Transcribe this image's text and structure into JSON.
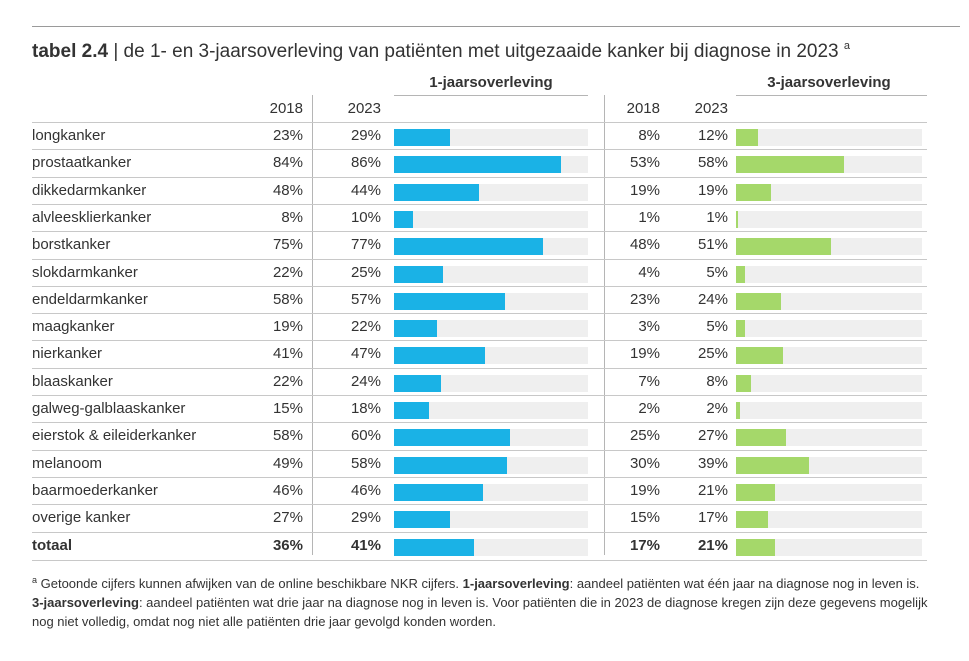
{
  "title": {
    "prefix": "tabel 2.4",
    "text": " | de 1- en 3-jaarsoverleving van patiënten met uitgezaaide kanker bij diagnose in 2023 ",
    "marker": "a"
  },
  "groups": {
    "one_year": "1-jaarsoverleving",
    "three_year": "3-jaarsoverleving"
  },
  "years": [
    "2018",
    "2023",
    "2018",
    "2023"
  ],
  "colors": {
    "one_year_bar": "#1ab2e6",
    "three_year_bar": "#a5d86a",
    "track": "#efefef"
  },
  "chart_data": {
    "type": "table",
    "columns": [
      "",
      "2018",
      "2023",
      "2018",
      "2023"
    ],
    "rows": [
      {
        "label": "longkanker",
        "y1_2018": "23%",
        "y1_2023": "29%",
        "y3_2018": "8%",
        "y3_2023": "12%",
        "bar1": 29,
        "bar3": 12
      },
      {
        "label": "prostaatkanker",
        "y1_2018": "84%",
        "y1_2023": "86%",
        "y3_2018": "53%",
        "y3_2023": "58%",
        "bar1": 86,
        "bar3": 58
      },
      {
        "label": "dikkedarmkanker",
        "y1_2018": "48%",
        "y1_2023": "44%",
        "y3_2018": "19%",
        "y3_2023": "19%",
        "bar1": 44,
        "bar3": 19
      },
      {
        "label": "alvleesklierkanker",
        "y1_2018": "8%",
        "y1_2023": "10%",
        "y3_2018": "1%",
        "y3_2023": "1%",
        "bar1": 10,
        "bar3": 1
      },
      {
        "label": "borstkanker",
        "y1_2018": "75%",
        "y1_2023": "77%",
        "y3_2018": "48%",
        "y3_2023": "51%",
        "bar1": 77,
        "bar3": 51
      },
      {
        "label": "slokdarmkanker",
        "y1_2018": "22%",
        "y1_2023": "25%",
        "y3_2018": "4%",
        "y3_2023": "5%",
        "bar1": 25,
        "bar3": 5
      },
      {
        "label": "endeldarmkanker",
        "y1_2018": "58%",
        "y1_2023": "57%",
        "y3_2018": "23%",
        "y3_2023": "24%",
        "bar1": 57,
        "bar3": 24
      },
      {
        "label": "maagkanker",
        "y1_2018": "19%",
        "y1_2023": "22%",
        "y3_2018": "3%",
        "y3_2023": "5%",
        "bar1": 22,
        "bar3": 5
      },
      {
        "label": "nierkanker",
        "y1_2018": "41%",
        "y1_2023": "47%",
        "y3_2018": "19%",
        "y3_2023": "25%",
        "bar1": 47,
        "bar3": 25
      },
      {
        "label": "blaaskanker",
        "y1_2018": "22%",
        "y1_2023": "24%",
        "y3_2018": "7%",
        "y3_2023": "8%",
        "bar1": 24,
        "bar3": 8
      },
      {
        "label": "galweg-galblaaskanker",
        "y1_2018": "15%",
        "y1_2023": "18%",
        "y3_2018": "2%",
        "y3_2023": "2%",
        "bar1": 18,
        "bar3": 2
      },
      {
        "label": "eierstok & eileiderkanker",
        "y1_2018": "58%",
        "y1_2023": "60%",
        "y3_2018": "25%",
        "y3_2023": "27%",
        "bar1": 60,
        "bar3": 27
      },
      {
        "label": "melanoom",
        "y1_2018": "49%",
        "y1_2023": "58%",
        "y3_2018": "30%",
        "y3_2023": "39%",
        "bar1": 58,
        "bar3": 39
      },
      {
        "label": "baarmoederkanker",
        "y1_2018": "46%",
        "y1_2023": "46%",
        "y3_2018": "19%",
        "y3_2023": "21%",
        "bar1": 46,
        "bar3": 21
      },
      {
        "label": "overige kanker",
        "y1_2018": "27%",
        "y1_2023": "29%",
        "y3_2018": "15%",
        "y3_2023": "17%",
        "bar1": 29,
        "bar3": 17
      },
      {
        "label": "totaal",
        "y1_2018": "36%",
        "y1_2023": "41%",
        "y3_2018": "17%",
        "y3_2023": "21%",
        "bar1": 41,
        "bar3": 21,
        "total": true
      }
    ],
    "bar_max": 100
  },
  "footnote": {
    "marker": "a",
    "p1": " Getoonde cijfers kunnen afwijken van de online beschikbare NKR cijfers. ",
    "b1": "1-jaarsoverleving",
    "p2": ": aandeel patiënten wat één jaar na diagnose nog in leven is. ",
    "b2": "3-jaarsoverleving",
    "p3": ": aandeel patiënten wat drie jaar na diagnose nog in leven is. Voor patiënten die in 2023 de diagnose kregen zijn deze gegevens mogelijk nog niet volledig, omdat nog niet alle patiënten drie jaar gevolgd konden worden."
  }
}
